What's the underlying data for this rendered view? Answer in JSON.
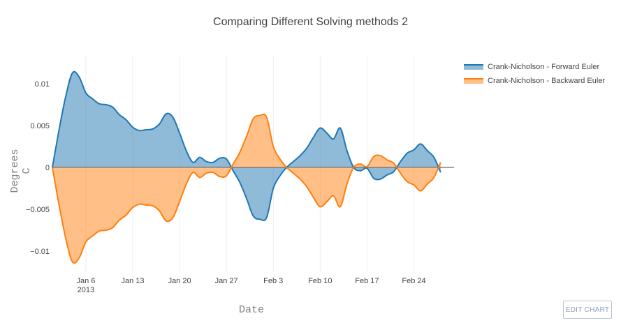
{
  "chart_data": {
    "type": "area",
    "title": "Comparing Different Solving methods 2",
    "xlabel": "Date",
    "ylabel": "Degrees C",
    "x_range": [
      "2013-01-01",
      "2013-03-02"
    ],
    "ylim": [
      -0.0125,
      0.0125
    ],
    "yticks": [
      -0.01,
      -0.005,
      0,
      0.005,
      0.01
    ],
    "ytick_labels": [
      "−0.01",
      "−0.005",
      "0",
      "0.005",
      "0.01"
    ],
    "xticks": [
      "2013-01-06",
      "2013-01-13",
      "2013-01-20",
      "2013-01-27",
      "2013-02-03",
      "2013-02-10",
      "2013-02-17",
      "2013-02-24"
    ],
    "xtick_labels": [
      "Jan 6",
      "Jan 13",
      "Jan 20",
      "Jan 27",
      "Feb 3",
      "Feb 10",
      "Feb 17",
      "Feb 24"
    ],
    "xtick_sublabel": "2013",
    "grid": true,
    "legend_position": "top-right",
    "series": [
      {
        "name": "Crank-Nicholson - Forward Euler",
        "color": "#1f77b4",
        "fill": "rgba(31,119,180,0.5)",
        "x": [
          "2013-01-01",
          "2013-01-02",
          "2013-01-03",
          "2013-01-04",
          "2013-01-05",
          "2013-01-06",
          "2013-01-07",
          "2013-01-08",
          "2013-01-09",
          "2013-01-10",
          "2013-01-11",
          "2013-01-12",
          "2013-01-13",
          "2013-01-14",
          "2013-01-15",
          "2013-01-16",
          "2013-01-17",
          "2013-01-18",
          "2013-01-19",
          "2013-01-20",
          "2013-01-21",
          "2013-01-22",
          "2013-01-23",
          "2013-01-24",
          "2013-01-25",
          "2013-01-26",
          "2013-01-27",
          "2013-01-28",
          "2013-01-29",
          "2013-01-30",
          "2013-01-31",
          "2013-02-01",
          "2013-02-02",
          "2013-02-03",
          "2013-02-04",
          "2013-02-05",
          "2013-02-06",
          "2013-02-07",
          "2013-02-08",
          "2013-02-09",
          "2013-02-10",
          "2013-02-11",
          "2013-02-12",
          "2013-02-13",
          "2013-02-14",
          "2013-02-15",
          "2013-02-16",
          "2013-02-17",
          "2013-02-18",
          "2013-02-19",
          "2013-02-20",
          "2013-02-21",
          "2013-02-22",
          "2013-02-23",
          "2013-02-24",
          "2013-02-25",
          "2013-02-26",
          "2013-02-27",
          "2013-02-28"
        ],
        "y": [
          0.0,
          0.0045,
          0.0085,
          0.0113,
          0.0108,
          0.0089,
          0.0082,
          0.0076,
          0.0075,
          0.0072,
          0.0063,
          0.0057,
          0.0048,
          0.0044,
          0.0045,
          0.0046,
          0.0052,
          0.0064,
          0.006,
          0.0041,
          0.002,
          0.0006,
          0.0012,
          0.0007,
          0.0006,
          0.0011,
          0.001,
          -0.0004,
          -0.0018,
          -0.0037,
          -0.0058,
          -0.0062,
          -0.006,
          -0.0025,
          -0.001,
          0.0,
          0.0007,
          0.0014,
          0.0023,
          0.0036,
          0.0047,
          0.0041,
          0.0034,
          0.0047,
          0.002,
          0.0,
          -0.0004,
          -0.0001,
          -0.0013,
          -0.0014,
          -0.0009,
          -0.0005,
          0.0007,
          0.0017,
          0.0021,
          0.0028,
          0.002,
          0.0012,
          -0.0006
        ]
      },
      {
        "name": "Crank-Nicholson - Backward Euler",
        "color": "#ff7f0e",
        "fill": "rgba(255,127,14,0.5)",
        "x": [
          "2013-01-01",
          "2013-01-02",
          "2013-01-03",
          "2013-01-04",
          "2013-01-05",
          "2013-01-06",
          "2013-01-07",
          "2013-01-08",
          "2013-01-09",
          "2013-01-10",
          "2013-01-11",
          "2013-01-12",
          "2013-01-13",
          "2013-01-14",
          "2013-01-15",
          "2013-01-16",
          "2013-01-17",
          "2013-01-18",
          "2013-01-19",
          "2013-01-20",
          "2013-01-21",
          "2013-01-22",
          "2013-01-23",
          "2013-01-24",
          "2013-01-25",
          "2013-01-26",
          "2013-01-27",
          "2013-01-28",
          "2013-01-29",
          "2013-01-30",
          "2013-01-31",
          "2013-02-01",
          "2013-02-02",
          "2013-02-03",
          "2013-02-04",
          "2013-02-05",
          "2013-02-06",
          "2013-02-07",
          "2013-02-08",
          "2013-02-09",
          "2013-02-10",
          "2013-02-11",
          "2013-02-12",
          "2013-02-13",
          "2013-02-14",
          "2013-02-15",
          "2013-02-16",
          "2013-02-17",
          "2013-02-18",
          "2013-02-19",
          "2013-02-20",
          "2013-02-21",
          "2013-02-22",
          "2013-02-23",
          "2013-02-24",
          "2013-02-25",
          "2013-02-26",
          "2013-02-27",
          "2013-02-28"
        ],
        "y": [
          0.0,
          -0.0045,
          -0.0085,
          -0.0113,
          -0.0108,
          -0.0089,
          -0.0082,
          -0.0076,
          -0.0075,
          -0.0072,
          -0.0063,
          -0.0057,
          -0.0048,
          -0.0044,
          -0.0045,
          -0.0046,
          -0.0052,
          -0.0064,
          -0.006,
          -0.0041,
          -0.002,
          -0.0006,
          -0.0012,
          -0.0007,
          -0.0006,
          -0.0011,
          -0.001,
          0.0004,
          0.0018,
          0.0037,
          0.0058,
          0.0062,
          0.006,
          0.0025,
          0.001,
          0.0,
          -0.0007,
          -0.0014,
          -0.0023,
          -0.0036,
          -0.0047,
          -0.0041,
          -0.0034,
          -0.0047,
          -0.002,
          0.0,
          0.0004,
          0.0001,
          0.0013,
          0.0014,
          0.0009,
          0.0005,
          -0.0007,
          -0.0017,
          -0.0021,
          -0.0028,
          -0.002,
          -0.0012,
          0.0006
        ]
      }
    ]
  },
  "ui": {
    "edit_button_label": "EDIT CHART"
  }
}
